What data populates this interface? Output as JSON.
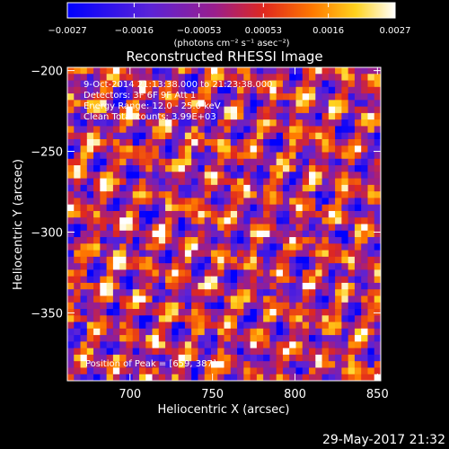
{
  "chart_data": {
    "type": "heatmap",
    "title": "Reconstructed RHESSI Image",
    "xlabel": "Heliocentric X (arcsec)",
    "ylabel": "Heliocentric Y (arcsec)",
    "xlim": [
      662,
      852
    ],
    "ylim": [
      -392,
      -198
    ],
    "x_ticks": [
      {
        "value": 700,
        "label": "700"
      },
      {
        "value": 750,
        "label": "750"
      },
      {
        "value": 800,
        "label": "800"
      },
      {
        "value": 850,
        "label": "850"
      }
    ],
    "y_ticks": [
      {
        "value": -200,
        "label": "−200"
      },
      {
        "value": -250,
        "label": "−250"
      },
      {
        "value": -300,
        "label": "−300"
      },
      {
        "value": -350,
        "label": "−350"
      }
    ],
    "colorbar": {
      "range": [
        -0.0027,
        0.0027
      ],
      "tick_values": [
        -0.0027,
        -0.0016,
        -0.00053,
        0.00053,
        0.0016,
        0.0027
      ],
      "tick_labels": [
        "−0.0027",
        "−0.0016",
        "−0.00053",
        "0.00053",
        "0.0016",
        "0.0027"
      ],
      "units_label": "(photons cm⁻² s⁻¹ asec⁻²)",
      "colormap": "blue-purple-red-orange-yellow-white"
    },
    "annotations": [
      "9-Oct-2014 21:13:38.000 to 21:23:38.000",
      "Detectors: 3F 6F 9F  Att 1",
      "Energy Range: 12.0 - 25.0 keV",
      "Clean    Total counts: 3.99E+03"
    ],
    "peak_annotation": "Position of Peak = [659, 387]",
    "grid": false,
    "grid_shape": [
      48,
      48
    ]
  },
  "footer": {
    "timestamp": "29-May-2017 21:32"
  }
}
